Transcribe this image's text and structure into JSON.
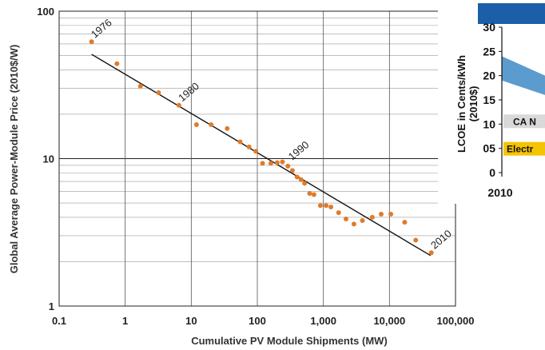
{
  "chart_data": [
    {
      "type": "scatter",
      "title": "",
      "xlabel": "Cumulative PV Module Shipments (MW)",
      "ylabel": "Global Average Power-Module Price (2010$/W)",
      "xscale": "log",
      "yscale": "log",
      "xlim": [
        0.1,
        100000
      ],
      "ylim": [
        1,
        100
      ],
      "grid": true,
      "x_ticks": [
        "0.1",
        "1",
        "10",
        "100",
        "1,000",
        "10,000",
        "100,000"
      ],
      "y_ticks": [
        "1",
        "10",
        "100"
      ],
      "colors": {
        "points": "#e07b2a",
        "trendline": "#111111",
        "grid": "#888888"
      },
      "series": [
        {
          "points": [
            {
              "x": 0.31,
              "y": 62
            },
            {
              "x": 0.75,
              "y": 44
            },
            {
              "x": 1.7,
              "y": 31
            },
            {
              "x": 3.2,
              "y": 28
            },
            {
              "x": 6.5,
              "y": 23
            },
            {
              "x": 12,
              "y": 17
            },
            {
              "x": 20,
              "y": 17
            },
            {
              "x": 35,
              "y": 16
            },
            {
              "x": 55,
              "y": 13
            },
            {
              "x": 75,
              "y": 12
            },
            {
              "x": 95,
              "y": 11.2
            },
            {
              "x": 120,
              "y": 9.3
            },
            {
              "x": 160,
              "y": 9.3
            },
            {
              "x": 200,
              "y": 9.4
            },
            {
              "x": 240,
              "y": 9.5
            },
            {
              "x": 290,
              "y": 8.9
            },
            {
              "x": 340,
              "y": 8.3
            },
            {
              "x": 400,
              "y": 7.5
            },
            {
              "x": 460,
              "y": 7.2
            },
            {
              "x": 520,
              "y": 6.8
            },
            {
              "x": 620,
              "y": 5.8
            },
            {
              "x": 720,
              "y": 5.7
            },
            {
              "x": 900,
              "y": 4.8
            },
            {
              "x": 1100,
              "y": 4.8
            },
            {
              "x": 1300,
              "y": 4.7
            },
            {
              "x": 1700,
              "y": 4.3
            },
            {
              "x": 2200,
              "y": 3.9
            },
            {
              "x": 2900,
              "y": 3.6
            },
            {
              "x": 3900,
              "y": 3.8
            },
            {
              "x": 5500,
              "y": 4.0
            },
            {
              "x": 7500,
              "y": 4.2
            },
            {
              "x": 10500,
              "y": 4.2
            },
            {
              "x": 17000,
              "y": 3.7
            },
            {
              "x": 25000,
              "y": 2.8
            },
            {
              "x": 43000,
              "y": 2.3
            }
          ]
        }
      ],
      "trendline": [
        {
          "x": 0.31,
          "y": 51
        },
        {
          "x": 42000,
          "y": 2.2
        }
      ],
      "annotations": [
        {
          "text": "1976",
          "x": 0.31,
          "y": 62
        },
        {
          "text": "1980",
          "x": 6.5,
          "y": 23
        },
        {
          "text": "1990",
          "x": 300,
          "y": 9.2
        },
        {
          "text": "2010",
          "x": 43000,
          "y": 2.3
        }
      ]
    },
    {
      "type": "area",
      "partial": true,
      "ylabel": "LCOE in Cents/kWh (2010$)",
      "y_ticks": [
        "0",
        "05",
        "10",
        "15",
        "20",
        "25",
        "30"
      ],
      "x_ticks": [
        "2010"
      ],
      "ylim": [
        0,
        30
      ],
      "band": {
        "upper_start": 24,
        "lower_start": 19,
        "color": "#4a90c8"
      },
      "labels": [
        {
          "text": "CA N",
          "y": 11,
          "color": "#d9d9d9"
        },
        {
          "text": "Electr",
          "y": 5,
          "color": "#f5c400"
        }
      ],
      "header_color": "#1a5fa8"
    }
  ]
}
